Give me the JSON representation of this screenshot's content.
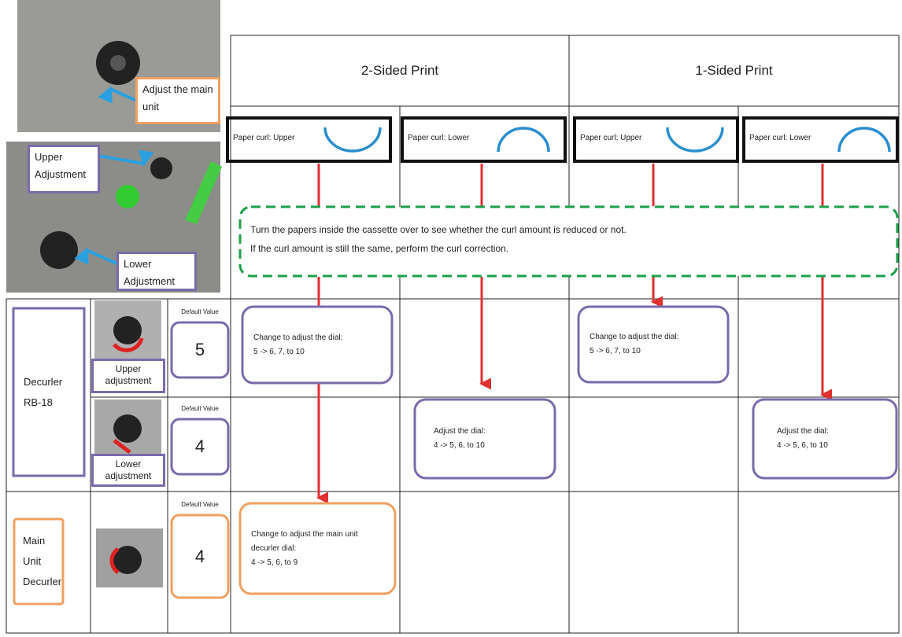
{
  "photos": {
    "main_unit": "Adjust the main unit",
    "upper": "Upper Adjustment",
    "lower": "Lower Adjustment"
  },
  "header": {
    "two_sided": "2-Sided Print",
    "one_sided": "1-Sided Print"
  },
  "curl": [
    "Paper curl: Upper",
    "Paper curl: Lower",
    "Paper curl: Upper",
    "Paper curl: Lower"
  ],
  "note": [
    "Turn the papers inside the cassette over to see whether the curl amount is reduced or not.",
    "If the curl amount is still the same, perform the curl correction."
  ],
  "rows": [
    {
      "name": "Decurler RB-18",
      "sub": [
        {
          "label": "Upper adjustment",
          "default_label": "Default Value",
          "default": 5
        },
        {
          "label": "Lower adjustment",
          "default_label": "Default Value",
          "default": 4
        }
      ]
    },
    {
      "name": "Main Unit Decurler",
      "default_label": "Default Value",
      "default": 4
    }
  ],
  "actions": [
    [
      "Change to adjust the dial:",
      "5 -> 6, 7, to 10"
    ],
    [
      "Change to adjust the dial:",
      "5 -> 6, 7, to 10"
    ],
    [
      "Adjust the dial:",
      "4 -> 5, 6, to 10"
    ],
    [
      "Adjust the dial:",
      "4 -> 5, 6, to 10"
    ],
    [
      "Change to adjust the main unit",
      "decurler dial:",
      "4 -> 5, 6, to 9"
    ]
  ]
}
